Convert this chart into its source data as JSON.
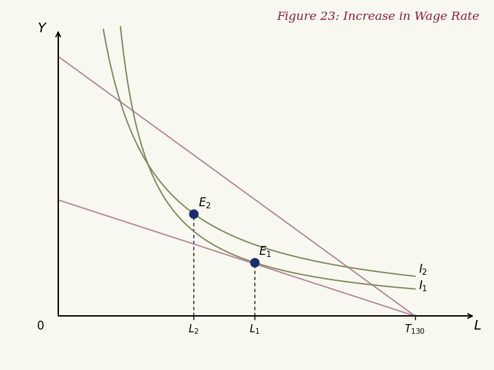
{
  "title": "Figure 23: Increase in Wage Rate",
  "title_color": "#8B1A3A",
  "bg_color": "#F8F8F0",
  "T": 10.0,
  "L1": 5.5,
  "L2": 3.8,
  "Y_intercept_budget1": 3.8,
  "Y_intercept_budget2": 8.5,
  "budget_line_color": "#B08098",
  "indiff_color": "#7A8A5A",
  "point_color": "#1C2B6B",
  "E1_x": 5.5,
  "E1_y": 1.75,
  "E2_x": 3.8,
  "E2_y": 3.35,
  "xlim_min": -0.8,
  "xlim_max": 11.8,
  "ylim_min": -0.8,
  "ylim_max": 9.5
}
